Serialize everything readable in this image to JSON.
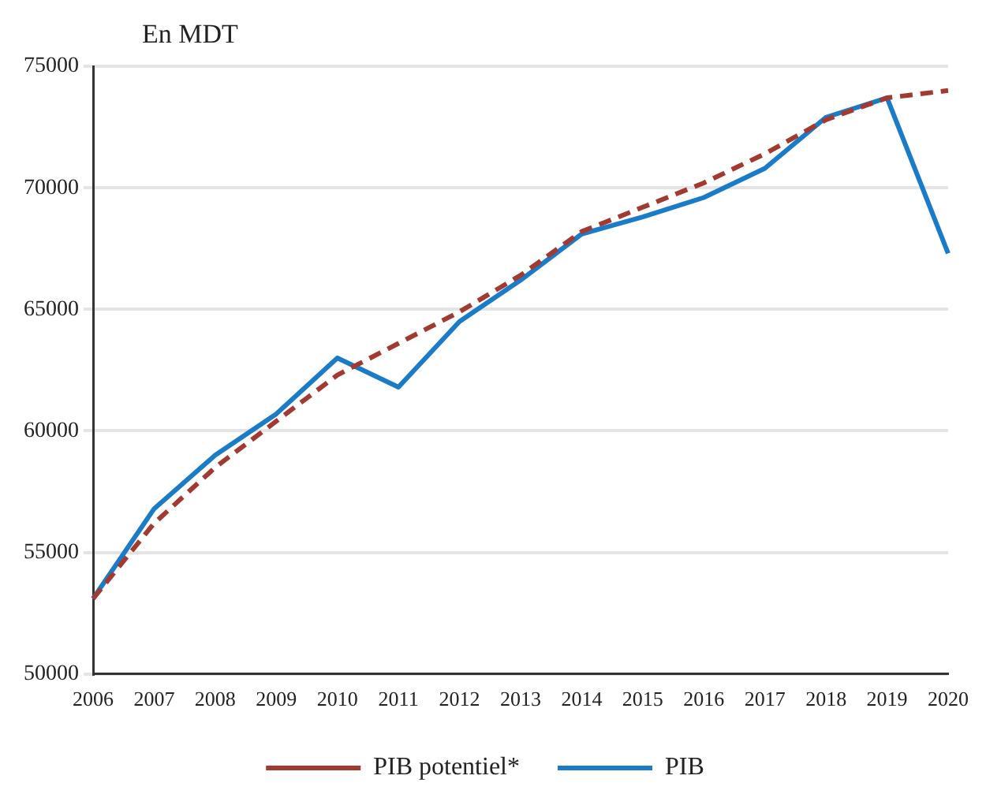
{
  "chart_data": {
    "type": "line",
    "ylabel": "En MDT",
    "categories": [
      "2006",
      "2007",
      "2008",
      "2009",
      "2010",
      "2011",
      "2012",
      "2013",
      "2014",
      "2015",
      "2016",
      "2017",
      "2018",
      "2019",
      "2020"
    ],
    "series": [
      {
        "name": "PIB potentiel*",
        "color": "#a33a32",
        "line_style": "dashed",
        "values": [
          53100,
          56200,
          58500,
          60400,
          62300,
          63600,
          64900,
          66400,
          68200,
          69200,
          70200,
          71400,
          72800,
          73700,
          74000
        ]
      },
      {
        "name": "PIB",
        "color": "#1a7bc8",
        "line_style": "solid",
        "values": [
          53100,
          56800,
          59000,
          60700,
          63000,
          61800,
          64500,
          66200,
          68100,
          68800,
          69600,
          70800,
          72900,
          73700,
          67300
        ]
      }
    ],
    "ylim": [
      50000,
      75000
    ],
    "yticks": [
      50000,
      55000,
      60000,
      65000,
      70000,
      75000
    ],
    "grid": "y",
    "legend": "bottom",
    "marker": "none"
  }
}
